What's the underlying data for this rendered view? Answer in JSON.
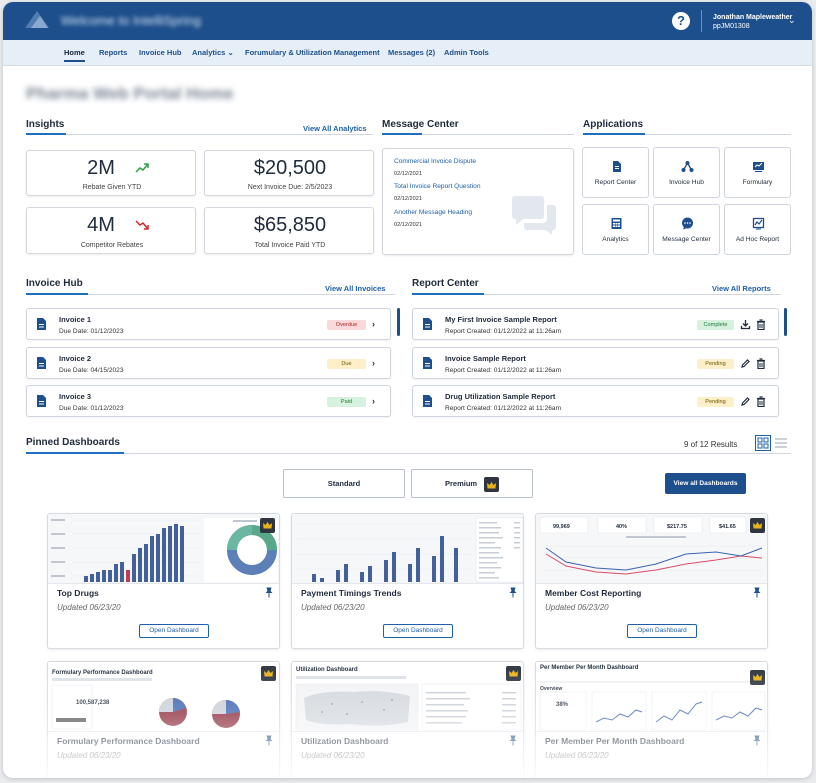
{
  "header": {
    "app_title": "Welcome to IntelliSpring",
    "user_name": "Jonathan Mapleweather",
    "user_id": "ppJM01308",
    "help_icon": "?",
    "caret_glyph": "⌄"
  },
  "nav": {
    "items": [
      "Home",
      "Reports",
      "Invoice Hub",
      "Analytics",
      "Forumulary & Utilization Management",
      "Messages (2)",
      "Admin Tools"
    ],
    "analytics_caret": "⌄"
  },
  "page": {
    "title": "Pharma Web Portal Home"
  },
  "insights": {
    "title": "Insights",
    "link": "View All Analytics",
    "kpis": [
      {
        "value": "2M",
        "label": "Rebate Given YTD",
        "trend": "up",
        "trend_color": "#2ea043"
      },
      {
        "value": "$20,500",
        "label": "Next Invoice Due: 2/5/2023"
      },
      {
        "value": "4M",
        "label": "Competitor Rebates",
        "trend": "down",
        "trend_color": "#cf2d2d"
      },
      {
        "value": "$65,850",
        "label": "Total Invoice Paid YTD"
      }
    ]
  },
  "message_center": {
    "title": "Message Center",
    "messages": [
      {
        "subject": "Commercial Invoice Dispute",
        "date": "02/12/2021"
      },
      {
        "subject": "Total Invoice Report Question",
        "date": "02/12/2021"
      },
      {
        "subject": "Another Message Heading",
        "date": "02/12/2021"
      }
    ],
    "watermark_icon": "chat-bubbles-icon"
  },
  "applications": {
    "title": "Applications",
    "items": [
      {
        "label": "Report Center",
        "icon": "document-icon"
      },
      {
        "label": "Invoice Hub",
        "icon": "hub-icon"
      },
      {
        "label": "Formulary",
        "icon": "chart-board-icon"
      },
      {
        "label": "Analytics",
        "icon": "calculator-icon"
      },
      {
        "label": "Message Center",
        "icon": "chat-icon"
      },
      {
        "label": "Ad Hoc Report",
        "icon": "trend-board-icon"
      }
    ]
  },
  "invoice_hub": {
    "title": "Invoice Hub",
    "link": "View All Invoices",
    "invoices": [
      {
        "name": "Invoice 1",
        "due": "Due Date: 01/12/2023",
        "status": "Overdue",
        "status_bg": "#f9d9d9",
        "status_fg": "#b42323"
      },
      {
        "name": "Invoice 2",
        "due": "Due Date: 04/15/2023",
        "status": "Due",
        "status_bg": "#fdf0c9",
        "status_fg": "#6b5200"
      },
      {
        "name": "Invoice 3",
        "due": "Due Date: 01/12/2023",
        "status": "Paid",
        "status_bg": "#d6f2df",
        "status_fg": "#1f7a3a"
      }
    ]
  },
  "report_center": {
    "title": "Report Center",
    "link": "View All Reports",
    "reports": [
      {
        "name": "My First Invoice Sample Report",
        "created": "Report Created: 01/12/2022 at 11:26am",
        "status": "Complete",
        "status_bg": "#d6f2df",
        "status_fg": "#1f7a3a",
        "action_icon": "download-icon"
      },
      {
        "name": "Invoice Sample Report",
        "created": "Report Created: 01/12/2022 at 11:26am",
        "status": "Pending",
        "status_bg": "#fdf0c9",
        "status_fg": "#6b5200",
        "action_icon": "edit-icon"
      },
      {
        "name": "Drug Utilization Sample Report",
        "created": "Report Created: 01/12/2022 at 11:26am",
        "status": "Pending",
        "status_bg": "#fdf0c9",
        "status_fg": "#6b5200",
        "action_icon": "edit-icon"
      }
    ]
  },
  "pinned": {
    "title": "Pinned Dashboards",
    "results": "9 of 12 Results",
    "toggle_standard": "Standard",
    "toggle_premium": "Premium",
    "view_all": "View all Dashboards",
    "open_label": "Open Dashboard",
    "dashboards": [
      {
        "name": "Top Drugs",
        "updated": "Updated 06/23/20",
        "premium": true
      },
      {
        "name": "Payment Timings Trends",
        "updated": "Updated 06/23/20",
        "premium": false
      },
      {
        "name": "Member Cost Reporting",
        "updated": "Updated 06/23/20",
        "premium": true
      },
      {
        "name": "Formulary Performance Dashboard",
        "updated": "Updated 06/23/20",
        "premium": true
      },
      {
        "name": "Utilization Dashboard",
        "updated": "Updated 06/23/20",
        "premium": true
      },
      {
        "name": "Per Member Per Month Dashboard",
        "updated": "Updated 06/23/20",
        "premium": true
      }
    ],
    "thumb_text": {
      "member_cost_metrics": [
        "99,969",
        "40%",
        "$217.75",
        "$41.65"
      ],
      "formulary_total": "100,587,238",
      "formulary_thumb_title": "Formulary Performance Dashboard",
      "util_thumb_title": "Utilization Dashboard",
      "pmpm_thumb_title": "Per Member Per Month Dashboard",
      "pmpm_overview": "Overview",
      "pmpm_pct": "38%"
    }
  },
  "colors": {
    "brand": "#1d4f8c",
    "link": "#1d5fa8",
    "accent": "#1d6fc2"
  }
}
